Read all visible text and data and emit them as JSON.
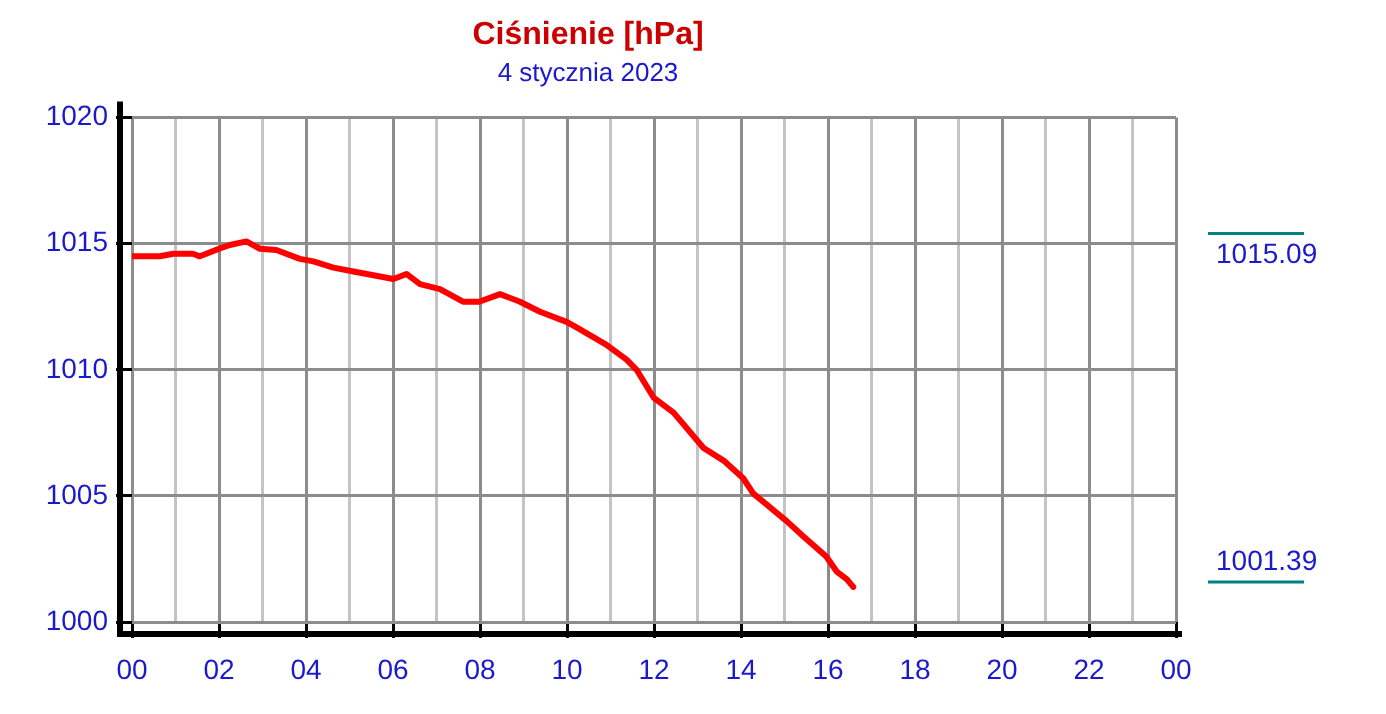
{
  "chart_data": {
    "type": "line",
    "title": "Ciśnienie [hPa]",
    "subtitle": "4 stycznia 2023",
    "x": [
      0,
      0.64,
      0.95,
      1.4,
      1.56,
      2.0,
      2.25,
      2.63,
      2.94,
      3.32,
      3.86,
      4.17,
      4.63,
      5.09,
      5.55,
      6.01,
      6.31,
      6.62,
      7.08,
      7.61,
      7.98,
      8.46,
      8.92,
      9.38,
      9.99,
      10.2,
      10.9,
      11.37,
      11.6,
      11.99,
      12.45,
      13.14,
      13.6,
      14.05,
      14.28,
      15.05,
      15.43,
      15.96,
      16.2,
      16.43,
      16.58
    ],
    "series": [
      {
        "color": "#ff0000",
        "values": [
          1014.5,
          1014.5,
          1014.6,
          1014.6,
          1014.5,
          1014.8,
          1014.95,
          1015.09,
          1014.8,
          1014.75,
          1014.4,
          1014.3,
          1014.05,
          1013.9,
          1013.75,
          1013.6,
          1013.8,
          1013.4,
          1013.2,
          1012.7,
          1012.7,
          1013.0,
          1012.7,
          1012.3,
          1011.9,
          1011.7,
          1011.0,
          1010.4,
          1010.0,
          1008.9,
          1008.3,
          1006.9,
          1006.4,
          1005.7,
          1005.1,
          1004.0,
          1003.4,
          1002.6,
          1002.0,
          1001.7,
          1001.39
        ]
      }
    ],
    "xlim": [
      0,
      24
    ],
    "xticks": [
      {
        "value": 0,
        "label": "00"
      },
      {
        "value": 1,
        "label": null
      },
      {
        "value": 2,
        "label": "02"
      },
      {
        "value": 3,
        "label": null
      },
      {
        "value": 4,
        "label": "04"
      },
      {
        "value": 5,
        "label": null
      },
      {
        "value": 6,
        "label": "06"
      },
      {
        "value": 7,
        "label": null
      },
      {
        "value": 8,
        "label": "08"
      },
      {
        "value": 9,
        "label": null
      },
      {
        "value": 10,
        "label": "10"
      },
      {
        "value": 11,
        "label": null
      },
      {
        "value": 12,
        "label": "12"
      },
      {
        "value": 13,
        "label": null
      },
      {
        "value": 14,
        "label": "14"
      },
      {
        "value": 15,
        "label": null
      },
      {
        "value": 16,
        "label": "16"
      },
      {
        "value": 17,
        "label": null
      },
      {
        "value": 18,
        "label": "18"
      },
      {
        "value": 19,
        "label": null
      },
      {
        "value": 20,
        "label": "20"
      },
      {
        "value": 21,
        "label": null
      },
      {
        "value": 22,
        "label": "22"
      },
      {
        "value": 23,
        "label": null
      },
      {
        "value": 24,
        "label": "00"
      }
    ],
    "ylim": [
      1000,
      1020
    ],
    "yticks": [
      1000,
      1005,
      1010,
      1015,
      1020
    ],
    "grid": true,
    "legend": false,
    "marker": "none",
    "line_style": "solid",
    "annotations": [
      "1015.09",
      "1001.39"
    ]
  }
}
